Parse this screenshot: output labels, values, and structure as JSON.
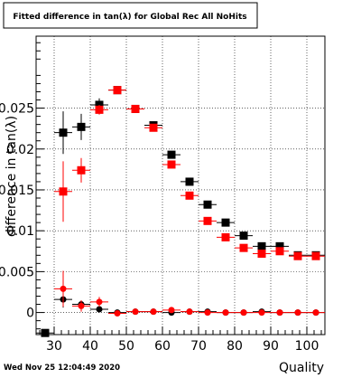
{
  "title": "Fitted difference in tan(λ) for Global Rec All NoHits",
  "timestamp": "Wed Nov 25 12:04:49 2020",
  "chart_data": {
    "type": "scatter",
    "xlabel": "Quality",
    "ylabel": "difference in tan(λ)",
    "xlim": [
      25,
      105
    ],
    "ylim": [
      -0.0027,
      0.0338
    ],
    "grid": true,
    "xticks": [
      30,
      40,
      50,
      60,
      70,
      80,
      90,
      100
    ],
    "xtick_labels": [
      "30",
      "40",
      "50",
      "60",
      "70",
      "80",
      "90",
      "100"
    ],
    "yticks": [
      0,
      0.005,
      0.01,
      0.015,
      0.02,
      0.025
    ],
    "ytick_labels": [
      "0",
      "0.005",
      "0.01",
      "0.015",
      "0.02",
      "0.025"
    ],
    "x_halfwidth": 2.5,
    "series": [
      {
        "color": "#000000",
        "points": [
          {
            "x": 27.5,
            "y": -0.0025,
            "err": 0
          },
          {
            "x": 32.5,
            "y": 0.022,
            "err": 0.0026
          },
          {
            "x": 37.5,
            "y": 0.0227,
            "err": 0.0016
          },
          {
            "x": 42.5,
            "y": 0.0254,
            "err": 0.0008
          },
          {
            "x": 47.5,
            "y": 0.0272,
            "err": 0.0004
          },
          {
            "x": 52.5,
            "y": 0.0249,
            "err": 0.0003
          },
          {
            "x": 57.5,
            "y": 0.0229,
            "err": 0.0003
          },
          {
            "x": 62.5,
            "y": 0.0193,
            "err": 0.0002
          },
          {
            "x": 67.5,
            "y": 0.016,
            "err": 0.0002
          },
          {
            "x": 72.5,
            "y": 0.0132,
            "err": 0.0002
          },
          {
            "x": 77.5,
            "y": 0.011,
            "err": 0.0002
          },
          {
            "x": 82.5,
            "y": 0.0094,
            "err": 0.0002
          },
          {
            "x": 87.5,
            "y": 0.0081,
            "err": 0.0002
          },
          {
            "x": 92.5,
            "y": 0.0081,
            "err": 0.0002
          },
          {
            "x": 97.5,
            "y": 0.007,
            "err": 0.0002
          },
          {
            "x": 102.5,
            "y": 0.007,
            "err": 0.0002
          }
        ]
      },
      {
        "color": "#ff0000",
        "points": [
          {
            "x": 32.5,
            "y": 0.0148,
            "err": 0.0037
          },
          {
            "x": 37.5,
            "y": 0.0174,
            "err": 0.0015
          },
          {
            "x": 42.5,
            "y": 0.0248,
            "err": 0.0006
          },
          {
            "x": 47.5,
            "y": 0.0272,
            "err": 0.0003
          },
          {
            "x": 52.5,
            "y": 0.0249,
            "err": 0.0003
          },
          {
            "x": 57.5,
            "y": 0.0226,
            "err": 0.0003
          },
          {
            "x": 62.5,
            "y": 0.0181,
            "err": 0.0003
          },
          {
            "x": 67.5,
            "y": 0.0143,
            "err": 0.0002
          },
          {
            "x": 72.5,
            "y": 0.0112,
            "err": 0.0002
          },
          {
            "x": 77.5,
            "y": 0.0092,
            "err": 0.0002
          },
          {
            "x": 82.5,
            "y": 0.0079,
            "err": 0.0002
          },
          {
            "x": 87.5,
            "y": 0.0072,
            "err": 0.0002
          },
          {
            "x": 92.5,
            "y": 0.0075,
            "err": 0.0002
          },
          {
            "x": 97.5,
            "y": 0.0069,
            "err": 0.0002
          },
          {
            "x": 102.5,
            "y": 0.0069,
            "err": 0.0002
          }
        ]
      },
      {
        "color": "#000000",
        "marker": "circle",
        "points": [
          {
            "x": 32.5,
            "y": 0.0016,
            "err": 0.001
          },
          {
            "x": 37.5,
            "y": 0.001,
            "err": 0.0005
          },
          {
            "x": 42.5,
            "y": 0.0004,
            "err": 0.0003
          },
          {
            "x": 47.5,
            "y": 0.0,
            "err": 0.0002
          },
          {
            "x": 52.5,
            "y": 0.0001,
            "err": 0.0001
          },
          {
            "x": 57.5,
            "y": 0.0001,
            "err": 0.0001
          },
          {
            "x": 62.5,
            "y": 0.0,
            "err": 0.0001
          },
          {
            "x": 67.5,
            "y": 0.0001,
            "err": 0.0001
          },
          {
            "x": 72.5,
            "y": 0.0001,
            "err": 0.0001
          },
          {
            "x": 77.5,
            "y": 0.0,
            "err": 0.0001
          },
          {
            "x": 82.5,
            "y": 0.0,
            "err": 0.0001
          },
          {
            "x": 87.5,
            "y": 0.0001,
            "err": 0.0001
          },
          {
            "x": 92.5,
            "y": 0.0,
            "err": 0.0001
          },
          {
            "x": 97.5,
            "y": 0.0,
            "err": 0.0001
          },
          {
            "x": 102.5,
            "y": 0.0,
            "err": 0.0001
          }
        ]
      },
      {
        "color": "#ff0000",
        "marker": "circle",
        "points": [
          {
            "x": 32.5,
            "y": 0.0029,
            "err": 0.0022
          },
          {
            "x": 37.5,
            "y": 0.0008,
            "err": 0.0007
          },
          {
            "x": 42.5,
            "y": 0.0013,
            "err": 0.0006
          },
          {
            "x": 47.5,
            "y": -0.0001,
            "err": 0.0003
          },
          {
            "x": 52.5,
            "y": 0.0001,
            "err": 0.0001
          },
          {
            "x": 57.5,
            "y": 0.0001,
            "err": 0.0001
          },
          {
            "x": 62.5,
            "y": 0.0003,
            "err": 0.0001
          },
          {
            "x": 67.5,
            "y": 0.0001,
            "err": 0.0001
          },
          {
            "x": 72.5,
            "y": 0.0,
            "err": 0.0001
          },
          {
            "x": 77.5,
            "y": 0.0,
            "err": 0.0001
          },
          {
            "x": 82.5,
            "y": 0.0,
            "err": 0.0001
          },
          {
            "x": 87.5,
            "y": 0.0,
            "err": 0.0001
          },
          {
            "x": 92.5,
            "y": 0.0,
            "err": 0.0001
          },
          {
            "x": 97.5,
            "y": 0.0,
            "err": 0.0001
          },
          {
            "x": 102.5,
            "y": 0.0,
            "err": 0.0001
          }
        ]
      }
    ]
  }
}
